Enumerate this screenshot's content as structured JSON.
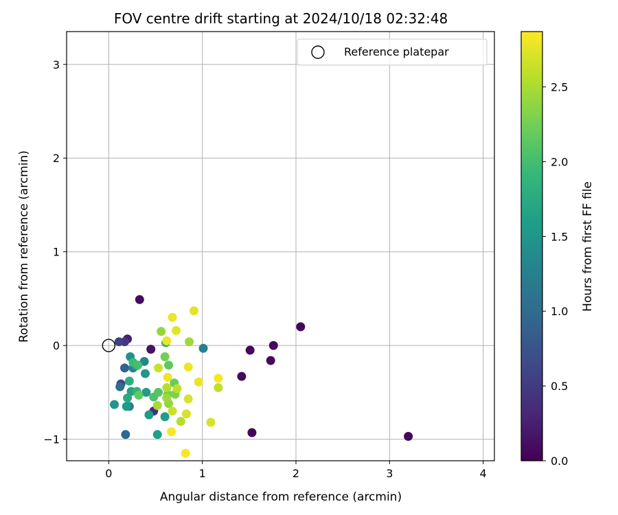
{
  "chart_data": {
    "type": "scatter",
    "title": "FOV centre drift starting at 2024/10/18 02:32:48",
    "xlabel": "Angular distance from reference (arcmin)",
    "ylabel": "Rotation from reference (arcmin)",
    "xlim": [
      -0.45,
      4.12
    ],
    "ylim": [
      -1.23,
      3.35
    ],
    "xticks": [
      0,
      1,
      2,
      3,
      4
    ],
    "yticks": [
      -1,
      0,
      1,
      2,
      3
    ],
    "xtick_labels": [
      "0",
      "1",
      "2",
      "3",
      "4"
    ],
    "ytick_labels": [
      "−1",
      "0",
      "1",
      "2",
      "3"
    ],
    "grid": true,
    "legend": {
      "location": "upper right",
      "entries": [
        {
          "label": "Reference platepar",
          "marker": "open-circle"
        }
      ]
    },
    "reference": {
      "x": 0,
      "y": 0
    },
    "colorbar": {
      "label": "Hours from first FF file",
      "colormap": "viridis",
      "range": [
        0,
        2.87
      ],
      "ticks": [
        0.0,
        0.5,
        1.0,
        1.5,
        2.0,
        2.5
      ],
      "tick_labels": [
        "0.0",
        "0.5",
        "1.0",
        "1.5",
        "2.0",
        "2.5"
      ],
      "stops": [
        "#440154",
        "#482878",
        "#3e4989",
        "#31688e",
        "#26828e",
        "#1f9e89",
        "#35b779",
        "#6ece58",
        "#b5de2b",
        "#fde725"
      ]
    },
    "points": [
      {
        "x": 0.33,
        "y": 0.49,
        "c": 0.08
      },
      {
        "x": 2.05,
        "y": 0.2,
        "c": 0.05
      },
      {
        "x": 1.76,
        "y": 0.0,
        "c": 0.08
      },
      {
        "x": 1.51,
        "y": -0.05,
        "c": 0.05
      },
      {
        "x": 1.73,
        "y": -0.16,
        "c": 0.08
      },
      {
        "x": 1.42,
        "y": -0.33,
        "c": 0.08
      },
      {
        "x": 1.53,
        "y": -0.93,
        "c": 0.05
      },
      {
        "x": 3.2,
        "y": -0.97,
        "c": 0.05
      },
      {
        "x": 0.45,
        "y": -0.04,
        "c": 0.15
      },
      {
        "x": 0.2,
        "y": 0.07,
        "c": 0.25
      },
      {
        "x": 0.17,
        "y": 0.04,
        "c": 0.45
      },
      {
        "x": 0.11,
        "y": 0.04,
        "c": 0.55
      },
      {
        "x": 0.13,
        "y": -0.41,
        "c": 0.6
      },
      {
        "x": 0.48,
        "y": -0.7,
        "c": 0.4
      },
      {
        "x": 0.17,
        "y": -0.24,
        "c": 0.9
      },
      {
        "x": 0.12,
        "y": -0.44,
        "c": 1.0
      },
      {
        "x": 0.18,
        "y": -0.95,
        "c": 0.95
      },
      {
        "x": 0.22,
        "y": -0.65,
        "c": 1.2
      },
      {
        "x": 0.26,
        "y": -0.24,
        "c": 1.25
      },
      {
        "x": 1.01,
        "y": -0.03,
        "c": 1.25
      },
      {
        "x": 0.38,
        "y": -0.17,
        "c": 1.3
      },
      {
        "x": 0.23,
        "y": -0.12,
        "c": 1.45
      },
      {
        "x": 0.06,
        "y": -0.63,
        "c": 1.5
      },
      {
        "x": 0.19,
        "y": -0.65,
        "c": 1.55
      },
      {
        "x": 0.29,
        "y": -0.22,
        "c": 1.55
      },
      {
        "x": 0.39,
        "y": -0.3,
        "c": 1.5
      },
      {
        "x": 0.4,
        "y": -0.5,
        "c": 1.55
      },
      {
        "x": 0.43,
        "y": -0.74,
        "c": 1.55
      },
      {
        "x": 0.52,
        "y": -0.95,
        "c": 1.6
      },
      {
        "x": 0.6,
        "y": -0.76,
        "c": 1.6
      },
      {
        "x": 0.24,
        "y": -0.49,
        "c": 1.65
      },
      {
        "x": 0.2,
        "y": -0.56,
        "c": 1.75
      },
      {
        "x": 0.22,
        "y": -0.38,
        "c": 1.8
      },
      {
        "x": 0.3,
        "y": -0.49,
        "c": 1.85
      },
      {
        "x": 0.61,
        "y": 0.03,
        "c": 1.85
      },
      {
        "x": 0.26,
        "y": -0.18,
        "c": 1.95
      },
      {
        "x": 0.31,
        "y": -0.21,
        "c": 2.0
      },
      {
        "x": 0.48,
        "y": -0.55,
        "c": 2.05
      },
      {
        "x": 0.53,
        "y": -0.5,
        "c": 2.1
      },
      {
        "x": 0.32,
        "y": -0.53,
        "c": 2.15
      },
      {
        "x": 0.64,
        "y": -0.21,
        "c": 2.15
      },
      {
        "x": 0.7,
        "y": -0.4,
        "c": 2.2
      },
      {
        "x": 0.6,
        "y": -0.12,
        "c": 2.25
      },
      {
        "x": 0.63,
        "y": -0.52,
        "c": 2.25
      },
      {
        "x": 0.71,
        "y": -0.52,
        "c": 2.3
      },
      {
        "x": 0.56,
        "y": 0.15,
        "c": 2.4
      },
      {
        "x": 0.64,
        "y": -0.62,
        "c": 2.4
      },
      {
        "x": 0.86,
        "y": 0.04,
        "c": 2.45
      },
      {
        "x": 0.62,
        "y": -0.56,
        "c": 2.45
      },
      {
        "x": 0.52,
        "y": -0.64,
        "c": 2.5
      },
      {
        "x": 0.62,
        "y": -0.45,
        "c": 2.55
      },
      {
        "x": 0.77,
        "y": -0.81,
        "c": 2.55
      },
      {
        "x": 0.73,
        "y": -0.46,
        "c": 2.6
      },
      {
        "x": 1.17,
        "y": -0.45,
        "c": 2.6
      },
      {
        "x": 0.68,
        "y": -0.7,
        "c": 2.65
      },
      {
        "x": 0.53,
        "y": -0.24,
        "c": 2.65
      },
      {
        "x": 0.83,
        "y": -0.73,
        "c": 2.7
      },
      {
        "x": 0.85,
        "y": -0.57,
        "c": 2.7
      },
      {
        "x": 1.09,
        "y": -0.82,
        "c": 2.7
      },
      {
        "x": 0.91,
        "y": 0.37,
        "c": 2.75
      },
      {
        "x": 0.72,
        "y": 0.16,
        "c": 2.75
      },
      {
        "x": 0.62,
        "y": 0.05,
        "c": 2.8
      },
      {
        "x": 0.68,
        "y": 0.3,
        "c": 2.8
      },
      {
        "x": 0.63,
        "y": -0.34,
        "c": 2.8
      },
      {
        "x": 0.85,
        "y": -0.23,
        "c": 2.8
      },
      {
        "x": 0.96,
        "y": -0.39,
        "c": 2.8
      },
      {
        "x": 1.17,
        "y": -0.35,
        "c": 2.85
      },
      {
        "x": 0.67,
        "y": -0.92,
        "c": 2.85
      },
      {
        "x": 0.82,
        "y": -1.15,
        "c": 2.85
      }
    ]
  }
}
